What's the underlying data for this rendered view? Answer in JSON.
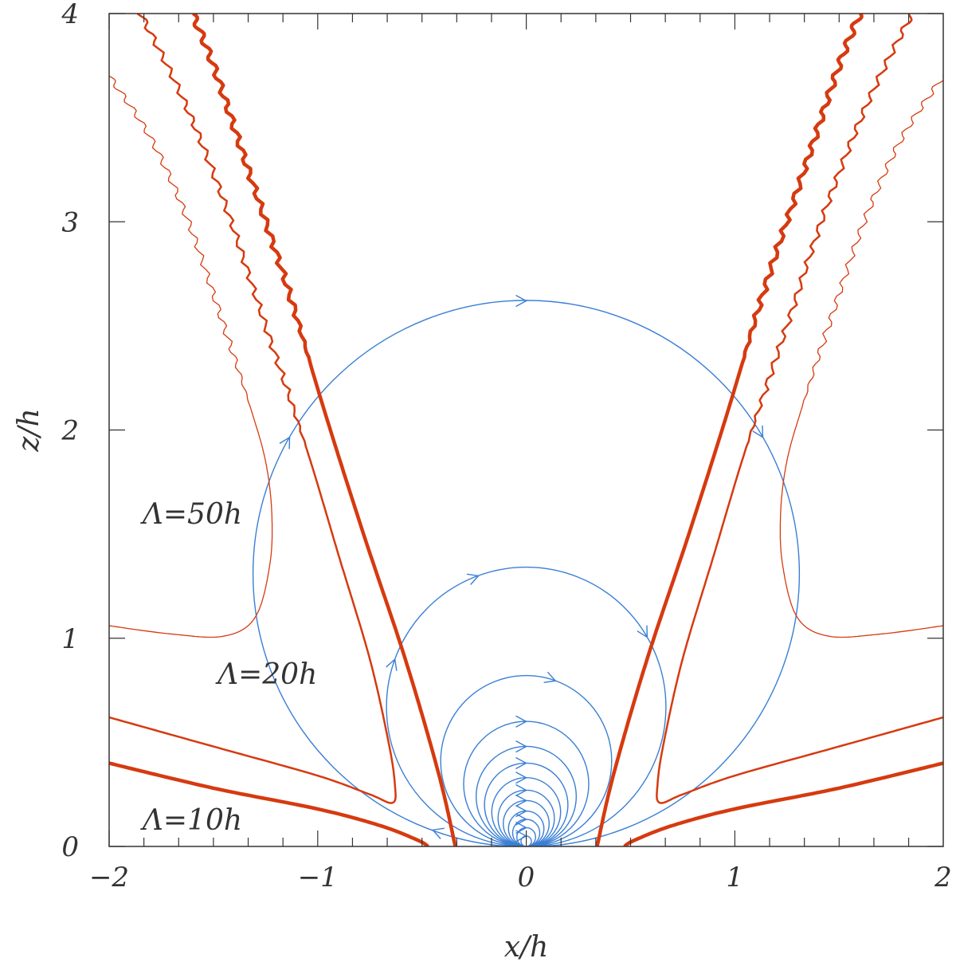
{
  "chart_data": {
    "type": "line",
    "xlabel": "x/h",
    "ylabel": "z/h",
    "xlim": [
      -2,
      2
    ],
    "ylim": [
      0,
      4
    ],
    "x_ticks": [
      {
        "value": -2,
        "label": "−2"
      },
      {
        "value": -1,
        "label": "−1"
      },
      {
        "value": 0,
        "label": "0"
      },
      {
        "value": 1,
        "label": "1"
      },
      {
        "value": 2,
        "label": "2"
      }
    ],
    "y_ticks": [
      {
        "value": 0,
        "label": "0"
      },
      {
        "value": 1,
        "label": "1"
      },
      {
        "value": 2,
        "label": "2"
      },
      {
        "value": 3,
        "label": "3"
      },
      {
        "value": 4,
        "label": "4"
      }
    ],
    "x_minor_step": 0.1667,
    "y_minor_step": 0.2,
    "grid": false,
    "colors": {
      "contour": "#d63a10",
      "field": "#3a7fd5",
      "axis": "#333333"
    },
    "annotations": [
      {
        "text": "Λ=50h",
        "x": -1.84,
        "y": 1.55
      },
      {
        "text": "Λ=20h",
        "x": -1.48,
        "y": 0.78
      },
      {
        "text": "Λ=10h",
        "x": -1.84,
        "y": 0.08
      }
    ],
    "field_loops": [
      {
        "radius": 1.31,
        "arrow_angles": [
          30,
          90,
          150,
          250
        ]
      },
      {
        "radius": 0.67,
        "arrow_angles": [
          30,
          110,
          160
        ]
      },
      {
        "radius": 0.41,
        "arrow_angles": [
          70
        ]
      },
      {
        "radius": 0.3,
        "arrow_angles": [
          90
        ]
      },
      {
        "radius": 0.24,
        "arrow_angles": [
          90
        ]
      },
      {
        "radius": 0.2,
        "arrow_angles": [
          90
        ]
      },
      {
        "radius": 0.165,
        "arrow_angles": [
          90
        ]
      },
      {
        "radius": 0.135,
        "arrow_angles": [
          90
        ]
      },
      {
        "radius": 0.11,
        "arrow_angles": [
          90
        ]
      },
      {
        "radius": 0.085,
        "arrow_angles": [
          90
        ]
      },
      {
        "radius": 0.065,
        "arrow_angles": [
          90
        ]
      },
      {
        "radius": 0.045,
        "arrow_angles": [
          90
        ]
      },
      {
        "radius": 0.025,
        "arrow_angles": [
          90
        ]
      }
    ],
    "contours": [
      {
        "label": "Λ=10h",
        "width": 4.5,
        "branches": [
          {
            "points": [
              [
                -0.34,
                0
              ],
              [
                -0.42,
                0.35
              ],
              [
                -0.58,
                0.9
              ],
              [
                -0.78,
                1.5
              ],
              [
                -0.97,
                2.1
              ],
              [
                -1.15,
                2.7
              ],
              [
                -1.35,
                3.3
              ],
              [
                -1.5,
                3.75
              ],
              [
                -1.6,
                4.0
              ]
            ],
            "wavy_from": 2.3
          },
          {
            "points": [
              [
                0.34,
                0
              ],
              [
                0.42,
                0.35
              ],
              [
                0.58,
                0.9
              ],
              [
                0.78,
                1.5
              ],
              [
                0.97,
                2.1
              ],
              [
                1.15,
                2.7
              ],
              [
                1.35,
                3.3
              ],
              [
                1.5,
                3.75
              ],
              [
                1.6,
                4.0
              ]
            ],
            "wavy_from": 2.3
          },
          {
            "points": [
              [
                -2.0,
                0.4
              ],
              [
                -1.5,
                0.28
              ],
              [
                -1.0,
                0.18
              ],
              [
                -0.7,
                0.1
              ],
              [
                -0.52,
                0.03
              ],
              [
                -0.47,
                0.0
              ]
            ]
          },
          {
            "points": [
              [
                2.0,
                0.4
              ],
              [
                1.5,
                0.28
              ],
              [
                1.0,
                0.18
              ],
              [
                0.7,
                0.1
              ],
              [
                0.52,
                0.03
              ],
              [
                0.47,
                0.0
              ]
            ]
          }
        ]
      },
      {
        "label": "Λ=20h",
        "width": 2.5,
        "branches": [
          {
            "points": [
              [
                -2.0,
                0.62
              ],
              [
                -1.5,
                0.48
              ],
              [
                -1.0,
                0.34
              ],
              [
                -0.75,
                0.25
              ],
              [
                -0.64,
                0.21
              ],
              [
                -0.63,
                0.3
              ],
              [
                -0.66,
                0.5
              ],
              [
                -0.75,
                0.9
              ],
              [
                -0.9,
                1.4
              ],
              [
                -1.05,
                1.9
              ],
              [
                -1.25,
                2.5
              ],
              [
                -1.45,
                3.1
              ],
              [
                -1.65,
                3.6
              ],
              [
                -1.85,
                4.0
              ]
            ],
            "wavy_from": 1.9
          },
          {
            "points": [
              [
                2.0,
                0.62
              ],
              [
                1.5,
                0.48
              ],
              [
                1.0,
                0.34
              ],
              [
                0.75,
                0.25
              ],
              [
                0.64,
                0.21
              ],
              [
                0.63,
                0.3
              ],
              [
                0.66,
                0.5
              ],
              [
                0.75,
                0.9
              ],
              [
                0.9,
                1.4
              ],
              [
                1.05,
                1.9
              ],
              [
                1.25,
                2.5
              ],
              [
                1.45,
                3.1
              ],
              [
                1.65,
                3.6
              ],
              [
                1.85,
                4.0
              ]
            ],
            "wavy_from": 1.9
          }
        ]
      },
      {
        "label": "Λ=50h",
        "width": 1.3,
        "branches": [
          {
            "points": [
              [
                -2.0,
                1.06
              ],
              [
                -1.7,
                1.02
              ],
              [
                -1.45,
                1.01
              ],
              [
                -1.3,
                1.1
              ],
              [
                -1.23,
                1.35
              ],
              [
                -1.22,
                1.6
              ],
              [
                -1.25,
                1.85
              ],
              [
                -1.32,
                2.1
              ],
              [
                -1.45,
                2.5
              ],
              [
                -1.62,
                3.0
              ],
              [
                -1.8,
                3.4
              ],
              [
                -2.0,
                3.7
              ]
            ],
            "wavy_from": 2.1
          },
          {
            "points": [
              [
                2.0,
                1.06
              ],
              [
                1.7,
                1.02
              ],
              [
                1.45,
                1.01
              ],
              [
                1.3,
                1.1
              ],
              [
                1.23,
                1.35
              ],
              [
                1.22,
                1.6
              ],
              [
                1.25,
                1.85
              ],
              [
                1.32,
                2.1
              ],
              [
                1.45,
                2.5
              ],
              [
                1.62,
                3.0
              ],
              [
                1.8,
                3.4
              ],
              [
                2.0,
                3.7
              ]
            ],
            "wavy_from": 2.1
          }
        ]
      }
    ]
  }
}
